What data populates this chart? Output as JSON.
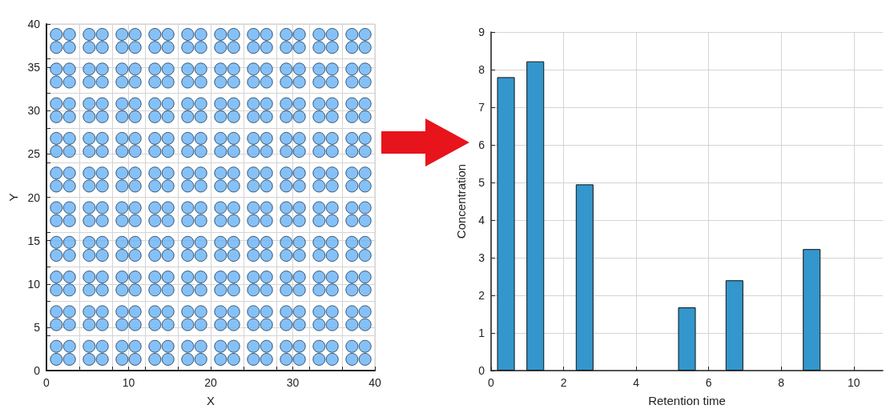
{
  "chart_data": [
    {
      "type": "scatter",
      "xlabel": "X",
      "ylabel": "Y",
      "color": "#66b2f5",
      "marker": "circle",
      "xlim": [
        0,
        40
      ],
      "ylim": [
        0,
        40
      ],
      "grid": true,
      "xticks": [
        0,
        {
          "value": 4,
          "label": null
        },
        {
          "value": 8,
          "label": null
        },
        10,
        {
          "value": 12,
          "label": null
        },
        {
          "value": 16,
          "label": null
        },
        20,
        {
          "value": 24,
          "label": null
        },
        {
          "value": 28,
          "label": null
        },
        30,
        {
          "value": 32,
          "label": null
        },
        {
          "value": 36,
          "label": null
        },
        40
      ],
      "yticks": [
        0,
        {
          "value": 4,
          "label": null
        },
        5,
        {
          "value": 8,
          "label": null
        },
        10,
        {
          "value": 12,
          "label": null
        },
        15,
        {
          "value": 16,
          "label": null
        },
        20,
        {
          "value": 24,
          "label": null
        },
        25,
        {
          "value": 28,
          "label": null
        },
        30,
        {
          "value": 32,
          "label": null
        },
        35,
        {
          "value": 36,
          "label": null
        },
        40
      ],
      "x": [
        1.2,
        2.8,
        5.2,
        6.8,
        9.2,
        10.8,
        13.2,
        14.8,
        17.2,
        18.8,
        21.2,
        22.8,
        25.2,
        26.8,
        29.2,
        30.8,
        33.2,
        34.8,
        37.2,
        38.8,
        1.2,
        2.8,
        5.2,
        6.8,
        9.2,
        10.8,
        13.2,
        14.8,
        17.2,
        18.8,
        21.2,
        22.8,
        25.2,
        26.8,
        29.2,
        30.8,
        33.2,
        34.8,
        37.2,
        38.8,
        1.2,
        2.8,
        5.2,
        6.8,
        9.2,
        10.8,
        13.2,
        14.8,
        17.2,
        18.8,
        21.2,
        22.8,
        25.2,
        26.8,
        29.2,
        30.8,
        33.2,
        34.8,
        37.2,
        38.8,
        1.2,
        2.8,
        5.2,
        6.8,
        9.2,
        10.8,
        13.2,
        14.8,
        17.2,
        18.8,
        21.2,
        22.8,
        25.2,
        26.8,
        29.2,
        30.8,
        33.2,
        34.8,
        37.2,
        38.8,
        1.2,
        2.8,
        5.2,
        6.8,
        9.2,
        10.8,
        13.2,
        14.8,
        17.2,
        18.8,
        21.2,
        22.8,
        25.2,
        26.8,
        29.2,
        30.8,
        33.2,
        34.8,
        37.2,
        38.8,
        1.2,
        2.8,
        5.2,
        6.8,
        9.2,
        10.8,
        13.2,
        14.8,
        17.2,
        18.8,
        21.2,
        22.8,
        25.2,
        26.8,
        29.2,
        30.8,
        33.2,
        34.8,
        37.2,
        38.8,
        1.2,
        2.8,
        5.2,
        6.8,
        9.2,
        10.8,
        13.2,
        14.8,
        17.2,
        18.8,
        21.2,
        22.8,
        25.2,
        26.8,
        29.2,
        30.8,
        33.2,
        34.8,
        37.2,
        38.8,
        1.2,
        2.8,
        5.2,
        6.8,
        9.2,
        10.8,
        13.2,
        14.8,
        17.2,
        18.8,
        21.2,
        22.8,
        25.2,
        26.8,
        29.2,
        30.8,
        33.2,
        34.8,
        37.2,
        38.8,
        1.2,
        2.8,
        5.2,
        6.8,
        9.2,
        10.8,
        13.2,
        14.8,
        17.2,
        18.8,
        21.2,
        22.8,
        25.2,
        26.8,
        29.2,
        30.8,
        33.2,
        34.8,
        37.2,
        38.8,
        1.2,
        2.8,
        5.2,
        6.8,
        9.2,
        10.8,
        13.2,
        14.8,
        17.2,
        18.8,
        21.2,
        22.8,
        25.2,
        26.8,
        29.2,
        30.8,
        33.2,
        34.8,
        37.2,
        38.8,
        1.2,
        2.8,
        5.2,
        6.8,
        9.2,
        10.8,
        13.2,
        14.8,
        17.2,
        18.8,
        21.2,
        22.8,
        25.2,
        26.8,
        29.2,
        30.8,
        33.2,
        34.8,
        37.2,
        38.8,
        1.2,
        2.8,
        5.2,
        6.8,
        9.2,
        10.8,
        13.2,
        14.8,
        17.2,
        18.8,
        21.2,
        22.8,
        25.2,
        26.8,
        29.2,
        30.8,
        33.2,
        34.8,
        37.2,
        38.8,
        1.2,
        2.8,
        5.2,
        6.8,
        9.2,
        10.8,
        13.2,
        14.8,
        17.2,
        18.8,
        21.2,
        22.8,
        25.2,
        26.8,
        29.2,
        30.8,
        33.2,
        34.8,
        37.2,
        38.8,
        1.2,
        2.8,
        5.2,
        6.8,
        9.2,
        10.8,
        13.2,
        14.8,
        17.2,
        18.8,
        21.2,
        22.8,
        25.2,
        26.8,
        29.2,
        30.8,
        33.2,
        34.8,
        37.2,
        38.8,
        1.2,
        2.8,
        5.2,
        6.8,
        9.2,
        10.8,
        13.2,
        14.8,
        17.2,
        18.8,
        21.2,
        22.8,
        25.2,
        26.8,
        29.2,
        30.8,
        33.2,
        34.8,
        37.2,
        38.8,
        1.2,
        2.8,
        5.2,
        6.8,
        9.2,
        10.8,
        13.2,
        14.8,
        17.2,
        18.8,
        21.2,
        22.8,
        25.2,
        26.8,
        29.2,
        30.8,
        33.2,
        34.8,
        37.2,
        38.8,
        1.2,
        2.8,
        5.2,
        6.8,
        9.2,
        10.8,
        13.2,
        14.8,
        17.2,
        18.8,
        21.2,
        22.8,
        25.2,
        26.8,
        29.2,
        30.8,
        33.2,
        34.8,
        37.2,
        38.8,
        1.2,
        2.8,
        5.2,
        6.8,
        9.2,
        10.8,
        13.2,
        14.8,
        17.2,
        18.8,
        21.2,
        22.8,
        25.2,
        26.8,
        29.2,
        30.8,
        33.2,
        34.8,
        37.2,
        38.8,
        1.2,
        2.8,
        5.2,
        6.8,
        9.2,
        10.8,
        13.2,
        14.8,
        17.2,
        18.8,
        21.2,
        22.8,
        25.2,
        26.8,
        29.2,
        30.8,
        33.2,
        34.8,
        37.2,
        38.8,
        1.2,
        2.8,
        5.2,
        6.8,
        9.2,
        10.8,
        13.2,
        14.8,
        17.2,
        18.8,
        21.2,
        22.8,
        25.2,
        26.8,
        29.2,
        30.8,
        33.2,
        34.8,
        37.2,
        38.8
      ],
      "values": [
        1.3,
        1.3,
        1.3,
        1.3,
        1.3,
        1.3,
        1.3,
        1.3,
        1.3,
        1.3,
        1.3,
        1.3,
        1.3,
        1.3,
        1.3,
        1.3,
        1.3,
        1.3,
        1.3,
        1.3,
        2.8,
        2.8,
        2.8,
        2.8,
        2.8,
        2.8,
        2.8,
        2.8,
        2.8,
        2.8,
        2.8,
        2.8,
        2.8,
        2.8,
        2.8,
        2.8,
        2.8,
        2.8,
        2.8,
        2.8,
        5.3,
        5.3,
        5.3,
        5.3,
        5.3,
        5.3,
        5.3,
        5.3,
        5.3,
        5.3,
        5.3,
        5.3,
        5.3,
        5.3,
        5.3,
        5.3,
        5.3,
        5.3,
        5.3,
        5.3,
        6.8,
        6.8,
        6.8,
        6.8,
        6.8,
        6.8,
        6.8,
        6.8,
        6.8,
        6.8,
        6.8,
        6.8,
        6.8,
        6.8,
        6.8,
        6.8,
        6.8,
        6.8,
        6.8,
        6.8,
        9.3,
        9.3,
        9.3,
        9.3,
        9.3,
        9.3,
        9.3,
        9.3,
        9.3,
        9.3,
        9.3,
        9.3,
        9.3,
        9.3,
        9.3,
        9.3,
        9.3,
        9.3,
        9.3,
        9.3,
        10.8,
        10.8,
        10.8,
        10.8,
        10.8,
        10.8,
        10.8,
        10.8,
        10.8,
        10.8,
        10.8,
        10.8,
        10.8,
        10.8,
        10.8,
        10.8,
        10.8,
        10.8,
        10.8,
        10.8,
        13.3,
        13.3,
        13.3,
        13.3,
        13.3,
        13.3,
        13.3,
        13.3,
        13.3,
        13.3,
        13.3,
        13.3,
        13.3,
        13.3,
        13.3,
        13.3,
        13.3,
        13.3,
        13.3,
        13.3,
        14.8,
        14.8,
        14.8,
        14.8,
        14.8,
        14.8,
        14.8,
        14.8,
        14.8,
        14.8,
        14.8,
        14.8,
        14.8,
        14.8,
        14.8,
        14.8,
        14.8,
        14.8,
        14.8,
        14.8,
        17.3,
        17.3,
        17.3,
        17.3,
        17.3,
        17.3,
        17.3,
        17.3,
        17.3,
        17.3,
        17.3,
        17.3,
        17.3,
        17.3,
        17.3,
        17.3,
        17.3,
        17.3,
        17.3,
        17.3,
        18.8,
        18.8,
        18.8,
        18.8,
        18.8,
        18.8,
        18.8,
        18.8,
        18.8,
        18.8,
        18.8,
        18.8,
        18.8,
        18.8,
        18.8,
        18.8,
        18.8,
        18.8,
        18.8,
        18.8,
        21.3,
        21.3,
        21.3,
        21.3,
        21.3,
        21.3,
        21.3,
        21.3,
        21.3,
        21.3,
        21.3,
        21.3,
        21.3,
        21.3,
        21.3,
        21.3,
        21.3,
        21.3,
        21.3,
        21.3,
        22.8,
        22.8,
        22.8,
        22.8,
        22.8,
        22.8,
        22.8,
        22.8,
        22.8,
        22.8,
        22.8,
        22.8,
        22.8,
        22.8,
        22.8,
        22.8,
        22.8,
        22.8,
        22.8,
        22.8,
        25.3,
        25.3,
        25.3,
        25.3,
        25.3,
        25.3,
        25.3,
        25.3,
        25.3,
        25.3,
        25.3,
        25.3,
        25.3,
        25.3,
        25.3,
        25.3,
        25.3,
        25.3,
        25.3,
        25.3,
        26.8,
        26.8,
        26.8,
        26.8,
        26.8,
        26.8,
        26.8,
        26.8,
        26.8,
        26.8,
        26.8,
        26.8,
        26.8,
        26.8,
        26.8,
        26.8,
        26.8,
        26.8,
        26.8,
        26.8,
        29.3,
        29.3,
        29.3,
        29.3,
        29.3,
        29.3,
        29.3,
        29.3,
        29.3,
        29.3,
        29.3,
        29.3,
        29.3,
        29.3,
        29.3,
        29.3,
        29.3,
        29.3,
        29.3,
        29.3,
        30.8,
        30.8,
        30.8,
        30.8,
        30.8,
        30.8,
        30.8,
        30.8,
        30.8,
        30.8,
        30.8,
        30.8,
        30.8,
        30.8,
        30.8,
        30.8,
        30.8,
        30.8,
        30.8,
        30.8,
        33.3,
        33.3,
        33.3,
        33.3,
        33.3,
        33.3,
        33.3,
        33.3,
        33.3,
        33.3,
        33.3,
        33.3,
        33.3,
        33.3,
        33.3,
        33.3,
        33.3,
        33.3,
        33.3,
        33.3,
        34.8,
        34.8,
        34.8,
        34.8,
        34.8,
        34.8,
        34.8,
        34.8,
        34.8,
        34.8,
        34.8,
        34.8,
        34.8,
        34.8,
        34.8,
        34.8,
        34.8,
        34.8,
        34.8,
        34.8,
        37.3,
        37.3,
        37.3,
        37.3,
        37.3,
        37.3,
        37.3,
        37.3,
        37.3,
        37.3,
        37.3,
        37.3,
        37.3,
        37.3,
        37.3,
        37.3,
        37.3,
        37.3,
        37.3,
        37.3,
        38.8,
        38.8,
        38.8,
        38.8,
        38.8,
        38.8,
        38.8,
        38.8,
        38.8,
        38.8,
        38.8,
        38.8,
        38.8,
        38.8,
        38.8,
        38.8,
        38.8,
        38.8,
        38.8,
        38.8
      ]
    },
    {
      "type": "bar",
      "xlabel": "Retention time",
      "ylabel": "Concentration",
      "color": "#3396cc",
      "xlim": [
        0,
        10.8
      ],
      "ylim": [
        0,
        9
      ],
      "grid": true,
      "xticks": [
        0,
        2,
        4,
        6,
        8,
        10
      ],
      "yticks": [
        0,
        1,
        2,
        3,
        4,
        5,
        6,
        7,
        8,
        9
      ],
      "x": [
        0.41,
        1.22,
        2.58,
        5.4,
        6.71,
        8.84
      ],
      "values": [
        7.8,
        8.22,
        4.95,
        1.68,
        2.4,
        3.23
      ]
    }
  ]
}
